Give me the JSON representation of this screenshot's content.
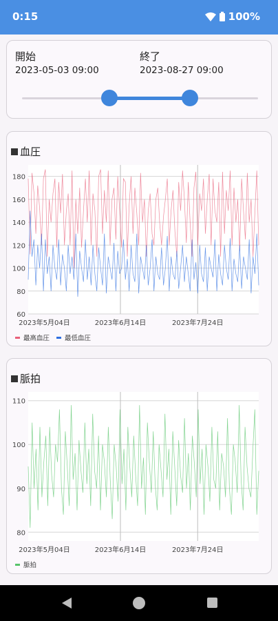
{
  "status": {
    "time": "0:15",
    "battery": "100%"
  },
  "range": {
    "start_label": "開始",
    "start_value": "2023-05-03 09:00",
    "end_label": "終了",
    "end_value": "2023-08-27 09:00",
    "slider_low": 0.37,
    "slider_high": 0.71
  },
  "bp_chart": {
    "title": "血圧",
    "legend": [
      "最高血圧",
      "最低血圧"
    ],
    "colors": [
      "#e8607a",
      "#2f6fe0"
    ],
    "chart_data": {
      "type": "line",
      "x_ticks": [
        "2023年5月04日",
        "2023年6月14日",
        "2023年7月24日"
      ],
      "ylim": [
        60,
        190
      ],
      "yticks": [
        60,
        80,
        100,
        120,
        140,
        160,
        180
      ],
      "series": [
        {
          "name": "最高血圧",
          "values": [
            178,
            112,
            183,
            166,
            130,
            172,
            152,
            120,
            178,
            186,
            110,
            160,
            140,
            165,
            178,
            118,
            175,
            148,
            182,
            120,
            150,
            165,
            120,
            185,
            100,
            160,
            130,
            170,
            118,
            150,
            178,
            140,
            185,
            120,
            165,
            150,
            110,
            180,
            186,
            130,
            168,
            140,
            185,
            120,
            160,
            170,
            125,
            180,
            150,
            118,
            178,
            175,
            110,
            155,
            180,
            130,
            170,
            148,
            120,
            183,
            140,
            160,
            110,
            150,
            165,
            130,
            120,
            160,
            170,
            140,
            120,
            145,
            160,
            178,
            120,
            150,
            168,
            132,
            110,
            175,
            150,
            185,
            160,
            122,
            175,
            140,
            110,
            170,
            184,
            120,
            165,
            150,
            178,
            130,
            160,
            182,
            120,
            178,
            150,
            140,
            175,
            110,
            184,
            130,
            168,
            150,
            185,
            120,
            170,
            140,
            160,
            115,
            178,
            150,
            125,
            183,
            140,
            160,
            110,
            150,
            185,
            120
          ]
        },
        {
          "name": "最低血圧",
          "values": [
            90,
            150,
            110,
            125,
            85,
            120,
            100,
            130,
            80,
            125,
            95,
            110,
            80,
            120,
            100,
            90,
            125,
            85,
            112,
            100,
            80,
            120,
            95,
            110,
            90,
            130,
            75,
            115,
            100,
            88,
            125,
            90,
            110,
            85,
            120,
            95,
            80,
            118,
            100,
            85,
            130,
            78,
            110,
            100,
            90,
            122,
            80,
            115,
            95,
            100,
            125,
            90,
            108,
            80,
            120,
            95,
            88,
            130,
            78,
            110,
            100,
            90,
            120,
            85,
            100,
            125,
            80,
            110,
            95,
            90,
            118,
            85,
            100,
            128,
            80,
            110,
            95,
            90,
            115,
            82,
            100,
            120,
            88,
            110,
            95,
            80,
            125,
            90,
            105,
            78,
            120,
            95,
            88,
            118,
            80,
            110,
            100,
            92,
            125,
            80,
            112,
            95,
            85,
            120,
            100,
            90,
            126,
            80,
            108,
            95,
            88,
            120,
            82,
            110,
            100,
            90,
            125,
            78,
            110,
            95,
            130,
            85
          ]
        }
      ]
    }
  },
  "hr_chart": {
    "title": "脈拍",
    "legend": [
      "脈拍"
    ],
    "colors": [
      "#57c46a"
    ],
    "chart_data": {
      "type": "line",
      "x_ticks": [
        "2023年5月04日",
        "2023年6月14日",
        "2023年7月24日"
      ],
      "ylim": [
        78,
        112
      ],
      "yticks": [
        80,
        90,
        100,
        110
      ],
      "series": [
        {
          "name": "脈拍",
          "values": [
            95,
            81,
            105,
            90,
            99,
            85,
            104,
            88,
            96,
            102,
            86,
            104,
            93,
            88,
            100,
            96,
            108,
            90,
            84,
            103,
            95,
            86,
            109,
            92,
            98,
            85,
            101,
            94,
            89,
            105,
            91,
            99,
            86,
            107,
            94,
            90,
            102,
            85,
            100,
            96,
            88,
            104,
            92,
            83,
            100,
            95,
            87,
            108,
            91,
            99,
            85,
            104,
            95,
            88,
            102,
            93,
            86,
            109,
            90,
            97,
            84,
            105,
            96,
            89,
            103,
            91,
            85,
            100,
            94,
            88,
            107,
            92,
            99,
            84,
            103,
            95,
            86,
            101,
            93,
            89,
            106,
            90,
            98,
            85,
            102,
            96,
            88,
            108,
            91,
            99,
            84,
            100,
            95,
            87,
            104,
            92,
            90,
            103,
            85,
            98,
            95,
            88,
            106,
            90,
            84,
            100,
            96,
            89,
            109,
            92,
            85,
            104,
            95,
            90,
            88,
            99,
            108,
            84,
            94
          ]
        }
      ]
    }
  }
}
